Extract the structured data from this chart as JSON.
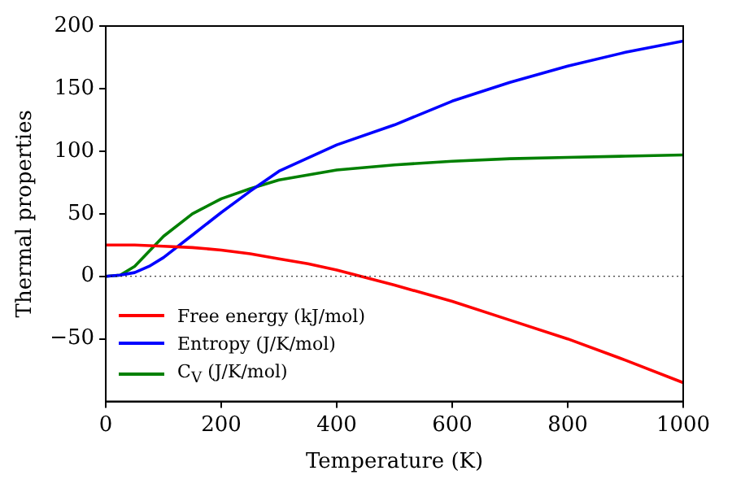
{
  "chart_data": {
    "type": "line",
    "xlabel": "Temperature (K)",
    "ylabel": "Thermal properties",
    "xlim": [
      0,
      1000
    ],
    "xticks": [
      0,
      200,
      400,
      600,
      800,
      1000
    ],
    "ylim": [
      -100,
      200
    ],
    "yticks": [
      -50,
      0,
      50,
      100,
      150,
      200
    ],
    "grid": false,
    "legend": "bottom left",
    "marker": "none",
    "line_style": "solid",
    "ref_lines": [
      {
        "axis": "y",
        "value": 0,
        "color": "#000000",
        "line_style": "dotted"
      }
    ],
    "series": [
      {
        "name": "Free energy (kJ/mol)",
        "color": "#ff0000",
        "x": [
          0,
          50,
          100,
          150,
          200,
          250,
          300,
          350,
          400,
          450,
          500,
          600,
          700,
          800,
          900,
          1000
        ],
        "values": [
          25,
          25,
          24,
          23,
          21,
          18,
          14,
          10,
          5,
          -1,
          -7,
          -20,
          -35,
          -50,
          -67,
          -85
        ]
      },
      {
        "name": "Entropy (J/K/mol)",
        "color": "#0000ff",
        "x": [
          0,
          25,
          50,
          75,
          100,
          150,
          200,
          250,
          300,
          400,
          500,
          600,
          700,
          800,
          900,
          1000
        ],
        "values": [
          0,
          1,
          3,
          8,
          15,
          33,
          51,
          68,
          84,
          105,
          121,
          140,
          155,
          168,
          179,
          188
        ]
      },
      {
        "name": "C$_{V}$ (J/K/mol)",
        "color": "#008000",
        "x": [
          0,
          25,
          50,
          75,
          100,
          150,
          200,
          250,
          300,
          400,
          500,
          600,
          700,
          800,
          900,
          1000
        ],
        "values": [
          0,
          1,
          8,
          20,
          32,
          50,
          62,
          70,
          77,
          85,
          89,
          92,
          94,
          95,
          96,
          97
        ]
      }
    ]
  }
}
